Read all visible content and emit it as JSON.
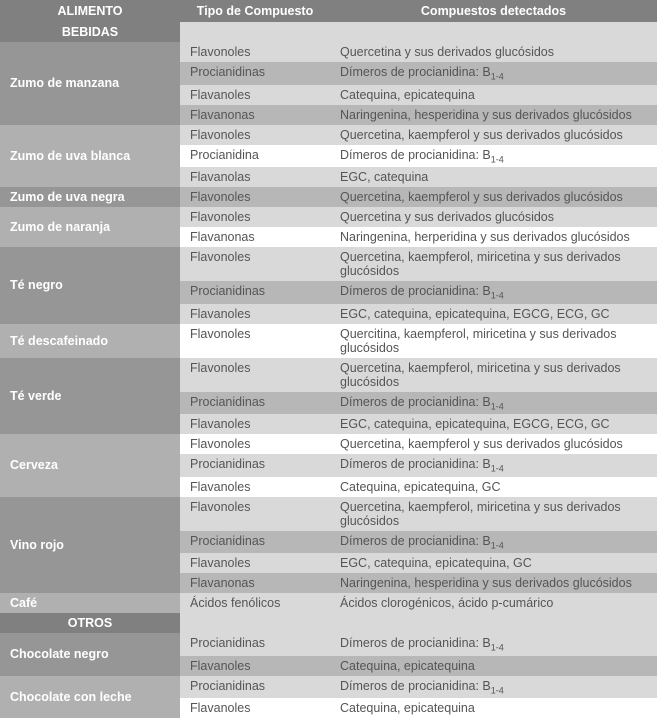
{
  "colors": {
    "header_bg": "#808080",
    "header_fg": "#ffffff",
    "row_dark": "#b7b7b7",
    "row_light": "#d9d9d9",
    "row_white": "#ffffff",
    "food_dark": "#969696",
    "food_light": "#b0b0b0",
    "text": "#555555"
  },
  "headers": {
    "food": "ALIMENTO",
    "type": "Tipo de Compuesto",
    "detected": "Compuestos detectados"
  },
  "sections": [
    {
      "title": "BEBIDAS",
      "foods": [
        {
          "name": "Zumo de manzana",
          "shade": "dark",
          "rows": [
            {
              "band": "light",
              "type": "Flavonoles",
              "detected": "Quercetina y sus derivados glucósidos"
            },
            {
              "band": "dark",
              "type": "Procianidinas",
              "detected": "Dímeros de procianidina: B",
              "sub": "1-4"
            },
            {
              "band": "light",
              "type": "Flavanoles",
              "detected": "Catequina, epicatequina"
            },
            {
              "band": "dark",
              "type": "Flavanonas",
              "detected": "Naringenina, hesperidina y sus derivados glucósidos"
            }
          ]
        },
        {
          "name": "Zumo de uva blanca",
          "shade": "light",
          "rows": [
            {
              "band": "light",
              "type": "Flavonoles",
              "detected": "Quercetina, kaempferol y sus derivados glucósidos"
            },
            {
              "band": "white",
              "type": "Procianidina",
              "detected": "Dímeros de procianidina: B",
              "sub": "1-4"
            },
            {
              "band": "light",
              "type": "Flavanolas",
              "detected": "EGC, catequina"
            }
          ]
        },
        {
          "name": "Zumo de uva negra",
          "shade": "dark",
          "rows": [
            {
              "band": "dark",
              "type": "Flavonoles",
              "detected": "Quercetina, kaempferol y sus derivados glucósidos"
            }
          ]
        },
        {
          "name": "Zumo de naranja",
          "shade": "light",
          "rows": [
            {
              "band": "light",
              "type": "Flavonoles",
              "detected": "Quercetina y sus derivados glucósidos"
            },
            {
              "band": "white",
              "type": "Flavanonas",
              "detected": "Naringenina, herperidina y sus derivados glucósidos"
            }
          ]
        },
        {
          "name": "Té negro",
          "shade": "dark",
          "rows": [
            {
              "band": "light",
              "type": "Flavonoles",
              "detected": "Quercetina, kaempferol, miricetina y sus derivados glucósidos"
            },
            {
              "band": "dark",
              "type": "Procianidinas",
              "detected": "Dímeros de procianidina: B",
              "sub": "1-4"
            },
            {
              "band": "light",
              "type": "Flavanoles",
              "detected": "EGC, catequina, epicatequina, EGCG, ECG, GC"
            }
          ]
        },
        {
          "name": "Té descafeinado",
          "shade": "light",
          "rows": [
            {
              "band": "white",
              "type": "Flavonoles",
              "detected": "Quercitina, kaempferol, miricetina y sus derivados glucósidos"
            }
          ]
        },
        {
          "name": "Té verde",
          "shade": "dark",
          "rows": [
            {
              "band": "light",
              "type": "Flavonoles",
              "detected": "Quercetina, kaempferol, miricetina y sus derivados glucósidos"
            },
            {
              "band": "dark",
              "type": "Procianidinas",
              "detected": "Dímeros de procianidina: B",
              "sub": "1-4"
            },
            {
              "band": "light",
              "type": "Flavanoles",
              "detected": "EGC, catequina, epicatequina, EGCG, ECG, GC"
            }
          ]
        },
        {
          "name": "Cerveza",
          "shade": "light",
          "rows": [
            {
              "band": "white",
              "type": "Flavonoles",
              "detected": "Quercetina, kaempferol y sus derivados glucósidos"
            },
            {
              "band": "light",
              "type": "Procianidinas",
              "detected": "Dímeros de procianidina: B",
              "sub": "1-4"
            },
            {
              "band": "white",
              "type": "Flavanoles",
              "detected": "Catequina, epicatequina, GC"
            }
          ]
        },
        {
          "name": "Vino rojo",
          "shade": "dark",
          "rows": [
            {
              "band": "light",
              "type": "Flavonoles",
              "detected": "Quercetina, kaempferol, miricetina y sus derivados glucósidos"
            },
            {
              "band": "dark",
              "type": "Procianidinas",
              "detected": "Dímeros de procianidina: B",
              "sub": "1-4"
            },
            {
              "band": "light",
              "type": "Flavanoles",
              "detected": "EGC, catequina, epicatequina, GC"
            },
            {
              "band": "dark",
              "type": "Flavanonas",
              "detected": "Naringenina, hesperidina y sus derivados glucósidos"
            }
          ]
        },
        {
          "name": "Café",
          "shade": "light",
          "rows": [
            {
              "band": "light",
              "type": "Ácidos fenólicos",
              "detected": "Ácidos clorogénicos, ácido p-cumárico"
            }
          ]
        }
      ]
    },
    {
      "title": "OTROS",
      "foods": [
        {
          "name": "Chocolate negro",
          "shade": "dark",
          "rows": [
            {
              "band": "light",
              "type": "Procianidinas",
              "detected": "Dímeros de procianidina: B",
              "sub": "1-4"
            },
            {
              "band": "dark",
              "type": "Flavanoles",
              "detected": "Catequina, epicatequina"
            }
          ]
        },
        {
          "name": "Chocolate con leche",
          "shade": "light",
          "rows": [
            {
              "band": "light",
              "type": "Procianidinas",
              "detected": "Dímeros de procianidina: B",
              "sub": "1-4"
            },
            {
              "band": "white",
              "type": "Flavanoles",
              "detected": "Catequina, epicatequina"
            }
          ]
        }
      ]
    }
  ]
}
